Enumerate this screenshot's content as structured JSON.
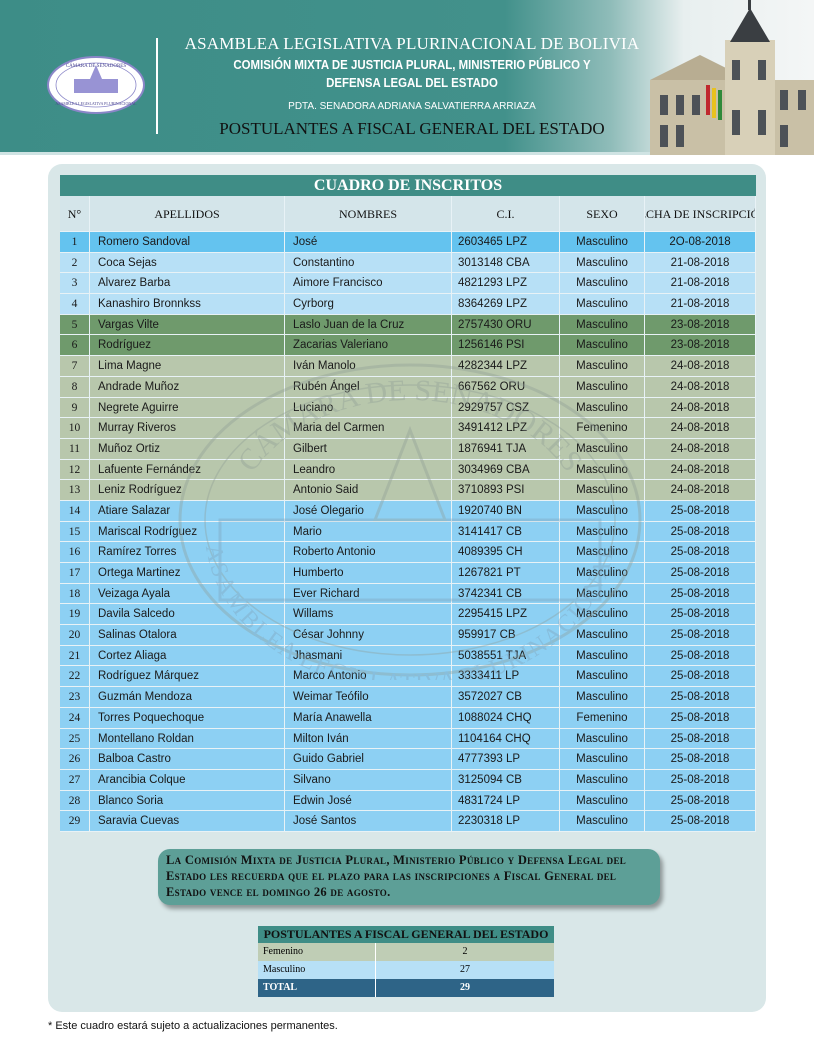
{
  "header": {
    "line1": "ASAMBLEA LEGISLATIVA PLURINACIONAL DE BOLIVIA",
    "line2": "COMISIÓN MIXTA DE JUSTICIA PLURAL, MINISTERIO PÚBLICO Y",
    "line3": "DEFENSA LEGAL DEL ESTADO",
    "president": "PDTA. SENADORA ADRIANA SALVATIERRA ARRIAZA",
    "title": "POSTULANTES A FISCAL GENERAL DEL ESTADO",
    "logo_top": "CÁMARA DE SENADORES",
    "logo_bottom": "ASAMBLEA LEGISLATIVA PLURINACIONAL"
  },
  "watermark": {
    "top": "CÁMARA DE SENADORES",
    "bottom": "ASAMBLEA LEGISLATIVA PLURINACIONAL"
  },
  "table": {
    "title": "CUADRO DE INSCRITOS",
    "columns": [
      "N°",
      "APELLIDOS",
      "NOMBRES",
      "C.I.",
      "SEXO",
      "FECHA DE INSCRIPCIÓN"
    ],
    "rows": [
      [
        "1",
        "Romero Sandoval",
        "José",
        "2603465 LPZ",
        "Masculino",
        "2O-08-2018"
      ],
      [
        "2",
        "Coca Sejas",
        "Constantino",
        "3013148 CBA",
        "Masculino",
        "21-08-2018"
      ],
      [
        "3",
        "Alvarez Barba",
        "Aimore Francisco",
        "4821293 LPZ",
        "Masculino",
        "21-08-2018"
      ],
      [
        "4",
        "Kanashiro Bronnkss",
        "Cyrborg",
        "8364269 LPZ",
        "Masculino",
        "21-08-2018"
      ],
      [
        "5",
        "Vargas Vilte",
        "Laslo Juan de la Cruz",
        "2757430 ORU",
        "Masculino",
        "23-08-2018"
      ],
      [
        "6",
        "Rodríguez",
        "Zacarias Valeriano",
        "1256146 PSI",
        "Masculino",
        "23-08-2018"
      ],
      [
        "7",
        "Lima Magne",
        "Iván Manolo",
        "4282344 LPZ",
        "Masculino",
        "24-08-2018"
      ],
      [
        "8",
        "Andrade Muñoz",
        "Rubén Ángel",
        "667562 ORU",
        "Masculino",
        "24-08-2018"
      ],
      [
        "9",
        "Negrete Aguirre",
        "Luciano",
        "2929757 CSZ",
        "Masculino",
        "24-08-2018"
      ],
      [
        "10",
        "Murray Riveros",
        "Maria del Carmen",
        "3491412 LPZ",
        "Femenino",
        "24-08-2018"
      ],
      [
        "11",
        "Muñoz Ortiz",
        "Gilbert",
        "1876941 TJA",
        "Masculino",
        "24-08-2018"
      ],
      [
        "12",
        "Lafuente Fernández",
        "Leandro",
        "3034969 CBA",
        "Masculino",
        "24-08-2018"
      ],
      [
        "13",
        "Leniz Rodríguez",
        "Antonio Said",
        "3710893 PSI",
        "Masculino",
        "24-08-2018"
      ],
      [
        "14",
        "Atiare Salazar",
        "José Olegario",
        "1920740 BN",
        "Masculino",
        "25-08-2018"
      ],
      [
        "15",
        "Mariscal Rodríguez",
        "Mario",
        "3141417 CB",
        "Masculino",
        "25-08-2018"
      ],
      [
        "16",
        "Ramírez Torres",
        "Roberto Antonio",
        "4089395 CH",
        "Masculino",
        "25-08-2018"
      ],
      [
        "17",
        "Ortega Martinez",
        "Humberto",
        "1267821 PT",
        "Masculino",
        "25-08-2018"
      ],
      [
        "18",
        "Veizaga Ayala",
        "Ever Richard",
        "3742341 CB",
        "Masculino",
        "25-08-2018"
      ],
      [
        "19",
        "Davila Salcedo",
        "Willams",
        "2295415 LPZ",
        "Masculino",
        "25-08-2018"
      ],
      [
        "20",
        "Salinas Otalora",
        "César Johnny",
        "959917 CB",
        "Masculino",
        "25-08-2018"
      ],
      [
        "21",
        "Cortez Aliaga",
        "Jhasmani",
        "5038551 TJA",
        "Masculino",
        "25-08-2018"
      ],
      [
        "22",
        "Rodríguez Márquez",
        "Marco Antonio",
        "3333411 LP",
        "Masculino",
        "25-08-2018"
      ],
      [
        "23",
        "Guzmán Mendoza",
        "Weimar Teófilo",
        "3572027 CB",
        "Masculino",
        "25-08-2018"
      ],
      [
        "24",
        "Torres Poquechoque",
        "María Anawella",
        "1088024 CHQ",
        "Femenino",
        "25-08-2018"
      ],
      [
        "25",
        "Montellano Roldan",
        "Milton Iván",
        "1104164 CHQ",
        "Masculino",
        "25-08-2018"
      ],
      [
        "26",
        "Balboa Castro",
        "Guido Gabriel",
        "4777393 LP",
        "Masculino",
        "25-08-2018"
      ],
      [
        "27",
        "Arancibia Colque",
        "Silvano",
        "3125094 CB",
        "Masculino",
        "25-08-2018"
      ],
      [
        "28",
        "Blanco Soria",
        "Edwin José",
        "4831724 LP",
        "Masculino",
        "25-08-2018"
      ],
      [
        "29",
        "Saravia Cuevas",
        "José Santos",
        "2230318 LP",
        "Masculino",
        "25-08-2018"
      ]
    ]
  },
  "notice": "La Comisión Mixta de Justicia Plural, Ministerio Público y Defensa Legal del Estado les recuerda que el plazo para las inscripciones a Fiscal General del Estado vence el domingo 26 de agosto.",
  "summary": {
    "title": "POSTULANTES A FISCAL GENERAL DEL ESTADO",
    "rows": [
      [
        "Femenino",
        "2"
      ],
      [
        "Masculino",
        "27"
      ],
      [
        "TOTAL",
        "29"
      ]
    ]
  },
  "footnote": "* Este cuadro estará sujeto a actualizaciones permanentes.",
  "colors": {
    "teal": "#3f8d86",
    "row_blue": "#8dd0f3",
    "row_light_blue": "#b7e0f6",
    "row_green": "#6f9a6c",
    "row_sage": "#b8c7ac",
    "total": "#2e6487"
  }
}
